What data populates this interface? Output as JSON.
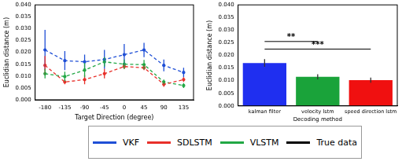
{
  "chart_data": [
    {
      "type": "line",
      "x_label": "Target Direction (degree)",
      "y_label": "Euclidian distance (m)",
      "categories": [
        "-180",
        "-135",
        "-90",
        "-45",
        "0",
        "45",
        "90",
        "135"
      ],
      "series": [
        {
          "name": "VKF",
          "color": "#1f4fd6",
          "line_style": "dashed",
          "values": [
            0.021,
            0.0165,
            0.016,
            0.017,
            0.019,
            0.021,
            0.0145,
            0.0115
          ],
          "errors": [
            0.0085,
            0.004,
            0.003,
            0.004,
            0.0045,
            0.003,
            0.0025,
            0.002
          ]
        },
        {
          "name": "SDLSTM",
          "color": "#e8302a",
          "line_style": "dashed",
          "values": [
            0.0145,
            0.0075,
            0.0085,
            0.011,
            0.014,
            0.0135,
            0.0065,
            0.0085
          ],
          "errors": [
            0.004,
            0.001,
            0.002,
            0.002,
            0.001,
            0.001,
            0.001,
            0.001
          ]
        },
        {
          "name": "VLSTM",
          "color": "#22a845",
          "line_style": "dashed",
          "values": [
            0.011,
            0.0098,
            0.0125,
            0.016,
            0.015,
            0.0148,
            0.0075,
            0.006
          ],
          "errors": [
            0.002,
            0.002,
            0.003,
            0.002,
            0.002,
            0.002,
            0.001,
            0.001
          ]
        },
        {
          "name": "True data",
          "color": "#000000",
          "line_style": "solid",
          "values": [
            null,
            null,
            null,
            null,
            null,
            null,
            null,
            null
          ]
        }
      ],
      "ylim": [
        0,
        0.04
      ],
      "yticks": [
        {
          "value": 0,
          "label": "0.000"
        },
        {
          "value": 0.005,
          "label": "0.005"
        },
        {
          "value": 0.01,
          "label": "0.010"
        },
        {
          "value": 0.015,
          "label": "0.015"
        },
        {
          "value": 0.02,
          "label": "0.020"
        },
        {
          "value": 0.025,
          "label": "0.025"
        },
        {
          "value": 0.03,
          "label": "0.030"
        },
        {
          "value": 0.035,
          "label": "0.035"
        },
        {
          "value": 0.04,
          "label": "0.040"
        }
      ],
      "grid": false,
      "legend": "bottom"
    },
    {
      "type": "bar",
      "x_label": "Decoding method",
      "y_label": "Euclidian distance (m)",
      "categories": [
        "kalman filter",
        "velocity lstm",
        "speed direction lstm"
      ],
      "values": [
        0.017,
        0.0115,
        0.0102
      ],
      "errors": [
        0.0015,
        0.001,
        0.001
      ],
      "colors": [
        "#1f2ff0",
        "#1aa33a",
        "#f01010"
      ],
      "ylim": [
        0,
        0.04
      ],
      "yticks": [
        {
          "value": 0,
          "label": "0.000"
        },
        {
          "value": 0.005,
          "label": "0.005"
        },
        {
          "value": 0.01,
          "label": "0.010"
        },
        {
          "value": 0.015,
          "label": "0.015"
        },
        {
          "value": 0.02,
          "label": "0.020"
        },
        {
          "value": 0.025,
          "label": "0.025"
        },
        {
          "value": 0.03,
          "label": "0.030"
        },
        {
          "value": 0.035,
          "label": "0.035"
        },
        {
          "value": 0.04,
          "label": "0.040"
        }
      ],
      "annotations": [
        {
          "from": 0,
          "to": 1,
          "y": 0.0255,
          "label": "**"
        },
        {
          "from": 0,
          "to": 2,
          "y": 0.0225,
          "label": "***"
        }
      ],
      "grid": false
    }
  ]
}
